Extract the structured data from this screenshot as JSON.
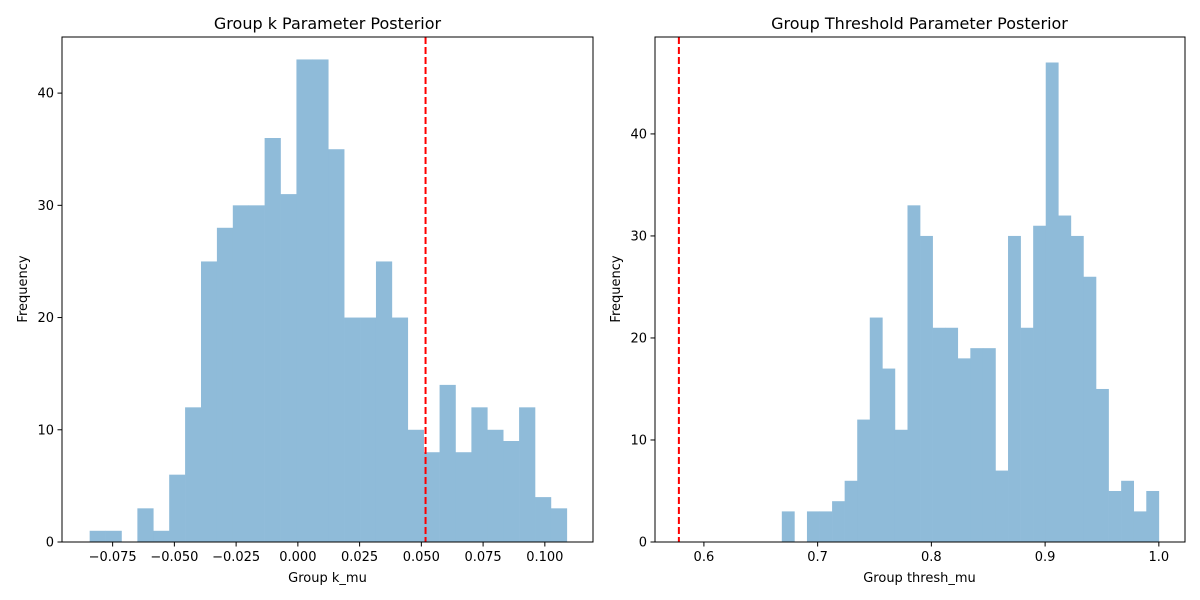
{
  "chart_data": [
    {
      "type": "bar",
      "title": "Group k Parameter Posterior",
      "xlabel": "Group k_mu",
      "ylabel": "Frequency",
      "xlim": [
        -0.0955,
        0.1195
      ],
      "ylim": [
        0,
        45
      ],
      "xticks": [
        -0.075,
        -0.05,
        -0.025,
        0.0,
        0.025,
        0.05,
        0.075,
        0.1
      ],
      "xtick_labels": [
        "−0.075",
        "−0.050",
        "−0.025",
        "0.000",
        "0.025",
        "0.050",
        "0.075",
        "0.100"
      ],
      "yticks": [
        0,
        10,
        20,
        30,
        40
      ],
      "bin_start": -0.0843,
      "bin_width": 0.00644,
      "counts": [
        1,
        1,
        0,
        3,
        1,
        6,
        12,
        25,
        28,
        30,
        30,
        36,
        31,
        43,
        43,
        35,
        20,
        20,
        25,
        20,
        10,
        8,
        14,
        8,
        12,
        10,
        9,
        12,
        4,
        3
      ],
      "color": "#8fbbd9",
      "vline": {
        "x": 0.0517,
        "color": "#ff0000",
        "style": "dashed"
      },
      "grid": false
    },
    {
      "type": "bar",
      "title": "Group Threshold Parameter Posterior",
      "xlabel": "Group thresh_mu",
      "ylabel": "Frequency",
      "xlim": [
        0.557,
        1.023
      ],
      "ylim": [
        0,
        49.5
      ],
      "xticks": [
        0.6,
        0.7,
        0.8,
        0.9,
        1.0
      ],
      "xtick_labels": [
        "0.6",
        "0.7",
        "0.8",
        "0.9",
        "1.0"
      ],
      "yticks": [
        0,
        10,
        20,
        30,
        40
      ],
      "bin_start": 0.6685,
      "bin_width": 0.01105,
      "counts": [
        3,
        0,
        3,
        3,
        4,
        6,
        12,
        22,
        17,
        11,
        33,
        30,
        21,
        21,
        18,
        19,
        19,
        7,
        30,
        21,
        31,
        47,
        32,
        30,
        26,
        15,
        5,
        6,
        3,
        5
      ],
      "color": "#8fbbd9",
      "vline": {
        "x": 0.578,
        "color": "#ff0000",
        "style": "dashed"
      },
      "grid": false
    }
  ]
}
